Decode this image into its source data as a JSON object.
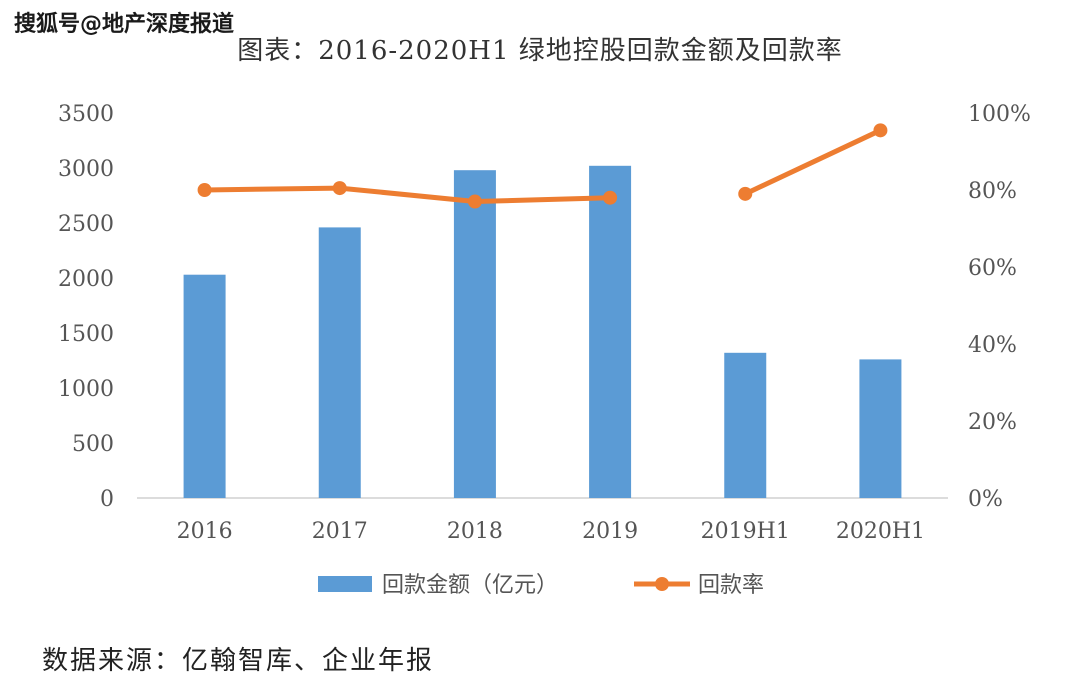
{
  "watermark": "搜狐号@地产深度报道",
  "source": "数据来源：亿翰智库、企业年报",
  "chart_data": {
    "type": "bar+line",
    "title": "图表：2016-2020H1 绿地控股回款金额及回款率",
    "categories": [
      "2016",
      "2017",
      "2018",
      "2019",
      "2019H1",
      "2020H1"
    ],
    "y_left": {
      "min": 0,
      "max": 3500,
      "ticks": [
        "0",
        "500",
        "1000",
        "1500",
        "2000",
        "2500",
        "3000",
        "3500"
      ]
    },
    "y_right": {
      "min": 0,
      "max": 1.0,
      "ticks": [
        "0%",
        "20%",
        "40%",
        "60%",
        "80%",
        "100%"
      ]
    },
    "series": [
      {
        "name": "回款金额（亿元）",
        "type": "bar",
        "axis": "left",
        "color": "#5b9bd5",
        "values": [
          2030,
          2460,
          2980,
          3020,
          1320,
          1260
        ]
      },
      {
        "name": "回款率",
        "type": "line",
        "axis": "right",
        "color": "#ed7d31",
        "values": [
          0.8,
          0.805,
          0.77,
          0.78,
          0.79,
          0.955
        ],
        "segments": [
          [
            0,
            3
          ],
          [
            4,
            5
          ]
        ]
      }
    ],
    "legend_position": "bottom",
    "grid": false
  }
}
